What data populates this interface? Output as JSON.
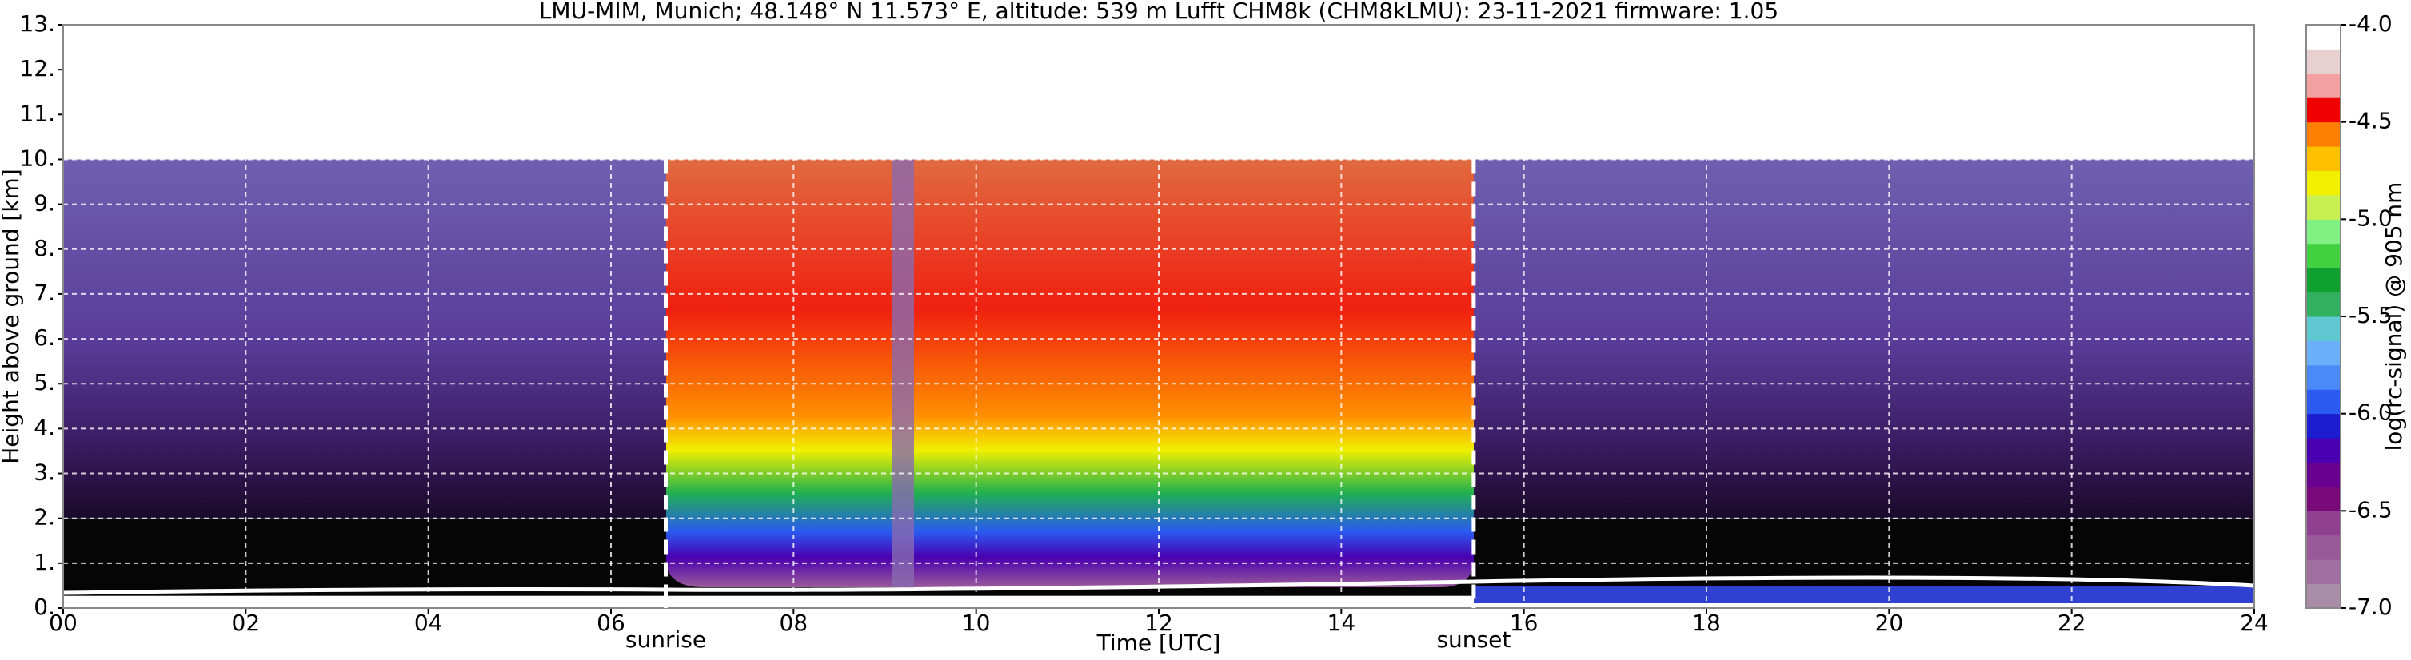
{
  "chart_data": {
    "type": "heatmap",
    "title": "LMU-MIM, Munich; 48.148° N 11.573° E, altitude: 539 m    Lufft CHM8k (CHM8kLMU): 23-11-2021    firmware: 1.05",
    "xlabel": "Time [UTC]",
    "ylabel": "Height above ground [km]",
    "xlim": [
      0,
      24
    ],
    "ylim": [
      0,
      13
    ],
    "xticks": [
      {
        "value": 0,
        "label": "00"
      },
      {
        "value": 2,
        "label": "02"
      },
      {
        "value": 4,
        "label": "04"
      },
      {
        "value": 6,
        "label": "06"
      },
      {
        "value": 8,
        "label": "08"
      },
      {
        "value": 10,
        "label": "10"
      },
      {
        "value": 12,
        "label": "12"
      },
      {
        "value": 14,
        "label": "14"
      },
      {
        "value": 16,
        "label": "16"
      },
      {
        "value": 18,
        "label": "18"
      },
      {
        "value": 20,
        "label": "20"
      },
      {
        "value": 22,
        "label": "22"
      },
      {
        "value": 24,
        "label": "24"
      }
    ],
    "yticks": [
      {
        "value": 0,
        "label": "0."
      },
      {
        "value": 1,
        "label": "1."
      },
      {
        "value": 2,
        "label": "2."
      },
      {
        "value": 3,
        "label": "3."
      },
      {
        "value": 4,
        "label": "4."
      },
      {
        "value": 5,
        "label": "5."
      },
      {
        "value": 6,
        "label": "6."
      },
      {
        "value": 7,
        "label": "7."
      },
      {
        "value": 8,
        "label": "8."
      },
      {
        "value": 9,
        "label": "9."
      },
      {
        "value": 10,
        "label": "10."
      },
      {
        "value": 11,
        "label": "11."
      },
      {
        "value": 12,
        "label": "12."
      },
      {
        "value": 13,
        "label": "13."
      }
    ],
    "grid": true,
    "annotations": [
      {
        "text": "sunrise",
        "x": 6.6
      },
      {
        "text": "sunset",
        "x": 15.45
      }
    ],
    "colorbar": {
      "label": "log(rc-signal) @ 905 nm",
      "lim": [
        -7,
        -4
      ],
      "ticks": [
        {
          "value": -7,
          "label": "-7.0"
        },
        {
          "value": -6.5,
          "label": "-6.5"
        },
        {
          "value": -6,
          "label": "-6.0"
        },
        {
          "value": -5.5,
          "label": "-5.5"
        },
        {
          "value": -5,
          "label": "-5.0"
        },
        {
          "value": -4.5,
          "label": "-4.5"
        },
        {
          "value": -4,
          "label": "-4.0"
        }
      ],
      "colors": [
        "#a88ca8",
        "#a070a0",
        "#9a5a9a",
        "#904090",
        "#7a0a7a",
        "#6a0090",
        "#4a00b0",
        "#1c1cd0",
        "#2a5af0",
        "#4a8af8",
        "#6ab0f8",
        "#60c8d0",
        "#30b060",
        "#10a030",
        "#40d040",
        "#80f080",
        "#c8f050",
        "#f0f000",
        "#ffc000",
        "#ff8000",
        "#f00000",
        "#f4a0a0",
        "#e8d0d0",
        "#ffffff"
      ]
    }
  }
}
